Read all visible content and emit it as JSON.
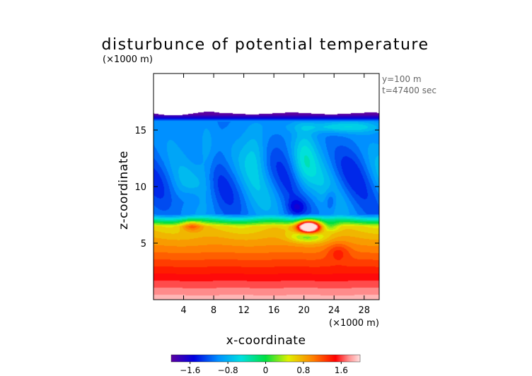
{
  "chart_data": {
    "type": "heatmap",
    "title": "disturbunce of potential temperature",
    "unit_top": "(×1000 m)",
    "unit_bottom": "(×1000 m)",
    "annotation": [
      "y=100 m",
      "t=47400 sec"
    ],
    "xlabel": "x-coordinate",
    "ylabel": "z-coordinate",
    "xlim": [
      0,
      30
    ],
    "ylim": [
      0,
      20
    ],
    "x_ticks": [
      4,
      8,
      12,
      16,
      20,
      24,
      28
    ],
    "x_tick_labels": [
      "4",
      "8",
      "12",
      "16",
      "20",
      "24",
      "28"
    ],
    "y_ticks": [
      5,
      10,
      15
    ],
    "y_tick_labels": [
      "5",
      "10",
      "15"
    ],
    "data_top_z": 16.5,
    "colorbar": {
      "range": [
        -2,
        2
      ],
      "ticks": [
        -1.6,
        -0.8,
        0,
        0.8,
        1.6
      ],
      "tick_labels": [
        "−1.6",
        "−0.8",
        "0",
        "0.8",
        "1.6"
      ]
    },
    "features": [
      {
        "x": 20.6,
        "z": 6.5,
        "value": 1.6
      },
      {
        "x": 5.0,
        "z": 6.5,
        "value": 0.6
      },
      {
        "x": 24.5,
        "z": 4.2,
        "value": 0.6
      },
      {
        "x": 19.0,
        "z": 8.2,
        "value": -0.9
      },
      {
        "x": 23.5,
        "z": 8.8,
        "value": -0.9
      },
      {
        "x": 5.0,
        "z": 9.0,
        "value": -0.6
      }
    ]
  }
}
